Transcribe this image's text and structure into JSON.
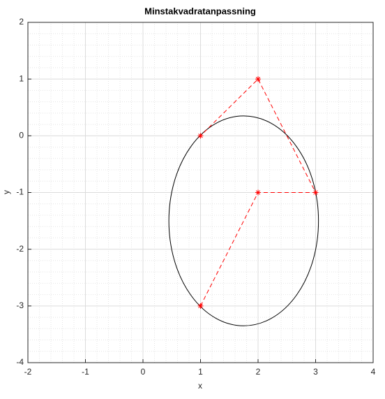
{
  "chart_data": {
    "type": "line",
    "title": "Minstakvadratanpassning",
    "xlabel": "x",
    "ylabel": "y",
    "xlim": [
      -2,
      4
    ],
    "ylim": [
      -4,
      2
    ],
    "xticks": [
      -2,
      -1,
      0,
      1,
      2,
      3,
      4
    ],
    "yticks": [
      -4,
      -3,
      -2,
      -1,
      0,
      1,
      2
    ],
    "grid": true,
    "minor_grid": true,
    "series": [
      {
        "color": "#ff0000",
        "line": "dashed",
        "marker": "*",
        "x": [
          1,
          2,
          3,
          2,
          1
        ],
        "y": [
          -3,
          -1,
          -1,
          1,
          0
        ]
      }
    ],
    "ellipse": {
      "color": "#000000",
      "center": [
        1.75,
        -1.5
      ],
      "radii": [
        1.3,
        1.85
      ]
    }
  }
}
